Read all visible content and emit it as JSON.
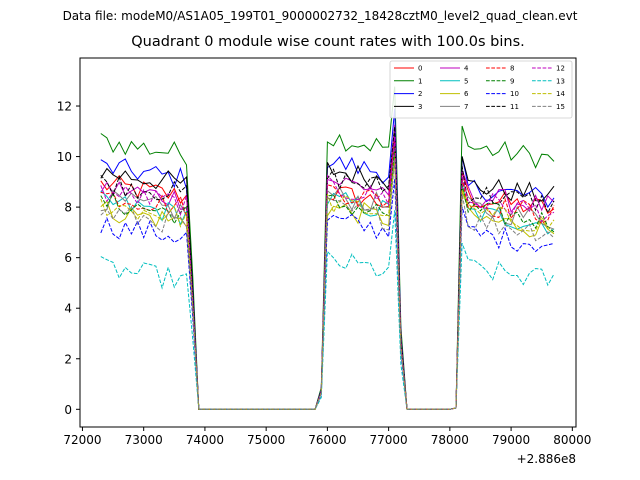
{
  "suptitle": "Data file: modeM0/AS1A05_199T01_9000002732_18428cztM0_level2_quad_clean.evt",
  "chart_data": {
    "type": "line",
    "title": "Quadrant 0 module wise count rates with 100.0s bins.",
    "xlabel": "",
    "ylabel": "",
    "x_offset_label": "+2.886e8",
    "xlim": [
      71960,
      80060
    ],
    "ylim": [
      -0.7,
      13.9
    ],
    "xticks": [
      72000,
      73000,
      74000,
      75000,
      76000,
      77000,
      78000,
      79000,
      80000
    ],
    "yticks": [
      0,
      2,
      4,
      6,
      8,
      10,
      12
    ],
    "x_segments": [
      {
        "start": 72300,
        "end": 73700,
        "step": 100
      },
      {
        "start": 76000,
        "end": 77100,
        "step": 100
      },
      {
        "start": 78200,
        "end": 79700,
        "step": 100
      }
    ],
    "legend_location": "top-right",
    "series": [
      {
        "name": "0",
        "color": "#ff0000",
        "dash": "solid",
        "base": [
          8.9,
          8.6,
          8.4
        ]
      },
      {
        "name": "1",
        "color": "#008000",
        "dash": "solid",
        "base": [
          10.6,
          10.8,
          10.4
        ]
      },
      {
        "name": "2",
        "color": "#0000ff",
        "dash": "solid",
        "base": [
          9.6,
          9.8,
          8.8
        ]
      },
      {
        "name": "3",
        "color": "#000000",
        "dash": "solid",
        "base": [
          9.4,
          9.5,
          8.9
        ]
      },
      {
        "name": "4",
        "color": "#bf00bf",
        "dash": "solid",
        "base": [
          8.8,
          9.1,
          8.5
        ]
      },
      {
        "name": "5",
        "color": "#00bfbf",
        "dash": "solid",
        "base": [
          8.2,
          8.3,
          7.8
        ]
      },
      {
        "name": "6",
        "color": "#bfbf00",
        "dash": "solid",
        "base": [
          7.9,
          8.0,
          7.6
        ]
      },
      {
        "name": "7",
        "color": "#808080",
        "dash": "solid",
        "base": [
          8.3,
          8.5,
          8.0
        ]
      },
      {
        "name": "8",
        "color": "#ff0000",
        "dash": "dashed",
        "base": [
          8.5,
          8.7,
          8.2
        ]
      },
      {
        "name": "9",
        "color": "#008000",
        "dash": "dashed",
        "base": [
          8.2,
          8.2,
          7.9
        ]
      },
      {
        "name": "10",
        "color": "#0000ff",
        "dash": "dashed",
        "base": [
          7.3,
          7.5,
          7.0
        ]
      },
      {
        "name": "11",
        "color": "#000000",
        "dash": "dashed",
        "base": [
          9.0,
          9.2,
          8.6
        ]
      },
      {
        "name": "12",
        "color": "#bf00bf",
        "dash": "dashed",
        "base": [
          8.6,
          8.8,
          8.3
        ]
      },
      {
        "name": "13",
        "color": "#00bfbf",
        "dash": "dashed",
        "base": [
          5.6,
          5.9,
          5.6
        ]
      },
      {
        "name": "14",
        "color": "#bfbf00",
        "dash": "dashed",
        "base": [
          8.1,
          8.2,
          7.8
        ]
      },
      {
        "name": "15",
        "color": "#808080",
        "dash": "dashed",
        "base": [
          7.8,
          8.0,
          7.5
        ]
      }
    ]
  }
}
